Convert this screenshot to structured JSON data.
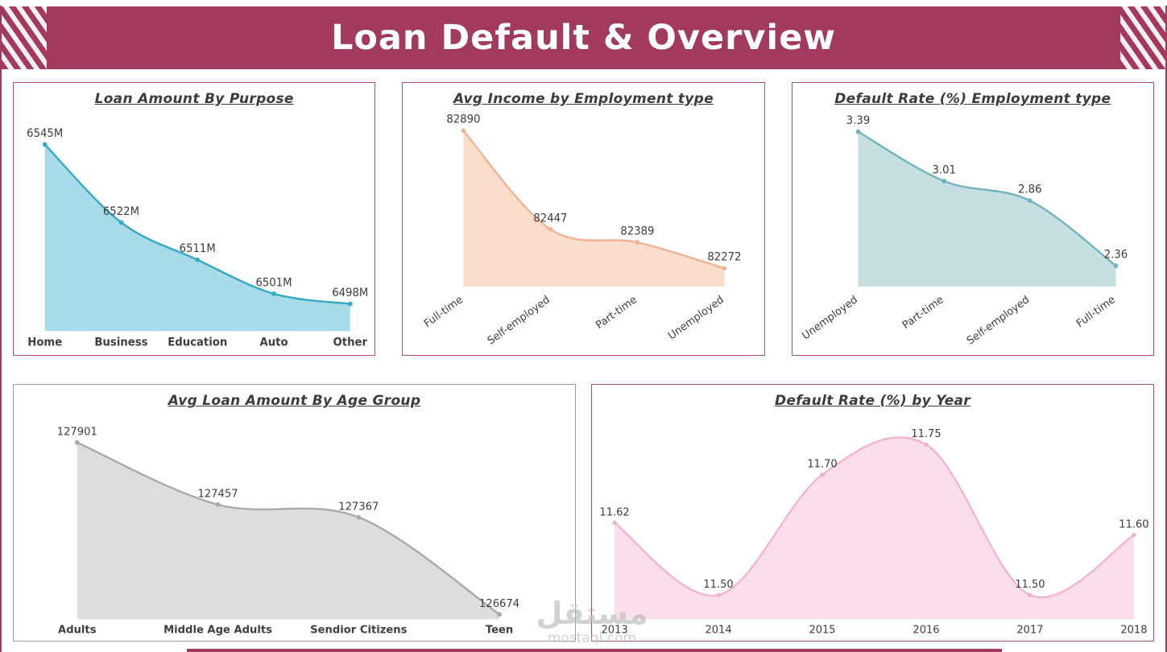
{
  "header": {
    "title": "Loan Default & Overview",
    "bg_color": "#a23a5c",
    "text_color": "#ffffff"
  },
  "frame_color": "#a23a5c",
  "footer": {
    "bar_color": "#a23a5c"
  },
  "watermark": {
    "arabic": "مستقل",
    "latin": "mostaql.com"
  },
  "chart_data": [
    {
      "type": "area",
      "title": "Loan Amount By Purpose",
      "categories": [
        "Home",
        "Business",
        "Education",
        "Auto",
        "Other"
      ],
      "values": [
        6545,
        6522,
        6511,
        6501,
        6498
      ],
      "value_labels": [
        "6545M",
        "6522M",
        "6511M",
        "6501M",
        "6498M"
      ],
      "ylim": [
        6490,
        6552
      ],
      "line_color": "#33a9c5",
      "fill_color": "#a7dbe7",
      "border_color": "#a9536e",
      "rotate_x_labels": false,
      "grid": false,
      "legend": "none"
    },
    {
      "type": "area",
      "title": "Avg Income by Employment type",
      "categories": [
        "Full-time",
        "Self-employed",
        "Part-time",
        "Unemployed"
      ],
      "values": [
        82890,
        82447,
        82389,
        82272
      ],
      "value_labels": [
        "82890",
        "82447",
        "82389",
        "82272"
      ],
      "ylim": [
        82190,
        82950
      ],
      "line_color": "#f1b296",
      "fill_color": "#fbddcc",
      "border_color": "#a9536e",
      "rotate_x_labels": true,
      "grid": false,
      "legend": "none"
    },
    {
      "type": "area",
      "title": "Default Rate (%) Employment type",
      "categories": [
        "Unemployed",
        "Part-time",
        "Self-employed",
        "Full-time"
      ],
      "values": [
        3.39,
        3.01,
        2.86,
        2.36
      ],
      "value_labels": [
        "3.39",
        "3.01",
        "2.86",
        "2.36"
      ],
      "ylim": [
        2.2,
        3.5
      ],
      "line_color": "#72b4bd",
      "fill_color": "#c6e0e2",
      "border_color": "#a9536e",
      "rotate_x_labels": true,
      "grid": false,
      "legend": "none"
    },
    {
      "type": "area",
      "title": "Avg Loan Amount By Age Group",
      "categories": [
        "Adults",
        "Middle Age Adults",
        "Sendior Citizens",
        "Teen"
      ],
      "values": [
        127901,
        127457,
        127367,
        126674
      ],
      "value_labels": [
        "127901",
        "127457",
        "127367",
        "126674"
      ],
      "ylim": [
        126640,
        128010
      ],
      "line_color": "#a9a9a6",
      "fill_color": "#dddddb",
      "border_color": "#9e9e9e",
      "rotate_x_labels": false,
      "grid": false,
      "legend": "none"
    },
    {
      "type": "area",
      "title": "Default Rate (%) by Year",
      "categories": [
        "2013",
        "2014",
        "2015",
        "2016",
        "2017",
        "2018"
      ],
      "values": [
        11.62,
        11.5,
        11.7,
        11.75,
        11.5,
        11.6
      ],
      "value_labels": [
        "11.62",
        "11.50",
        "11.70",
        "11.75",
        "11.50",
        "11.60"
      ],
      "ylim": [
        11.46,
        11.79
      ],
      "line_color": "#f3b3cf",
      "fill_color": "#fadeeb",
      "border_color": "#a9536e",
      "rotate_x_labels": false,
      "grid": false,
      "legend": "none"
    }
  ]
}
